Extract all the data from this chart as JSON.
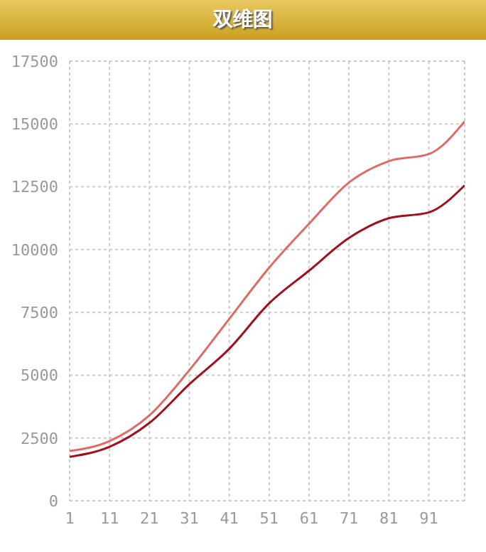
{
  "chart_data": {
    "type": "line",
    "title": "双维图",
    "x": [
      1,
      11,
      21,
      31,
      41,
      51,
      61,
      71,
      81,
      91,
      100
    ],
    "series": [
      {
        "color": "#e06a66",
        "values": [
          1980,
          2375,
          3400,
          5200,
          7240,
          9280,
          11030,
          12670,
          13520,
          13800,
          15100
        ]
      },
      {
        "color": "#a0101e",
        "values": [
          1750,
          2150,
          3100,
          4640,
          6050,
          7860,
          9160,
          10460,
          11250,
          11480,
          12560
        ]
      }
    ],
    "xlim": [
      1,
      100
    ],
    "xticks": [
      1,
      11,
      21,
      31,
      41,
      51,
      61,
      71,
      81,
      91
    ],
    "ylim": [
      0,
      17500
    ],
    "yticks": [
      0,
      2500,
      5000,
      7500,
      10000,
      12500,
      15000,
      17500
    ],
    "grid": true,
    "marker": "none",
    "line_style": "solid"
  }
}
